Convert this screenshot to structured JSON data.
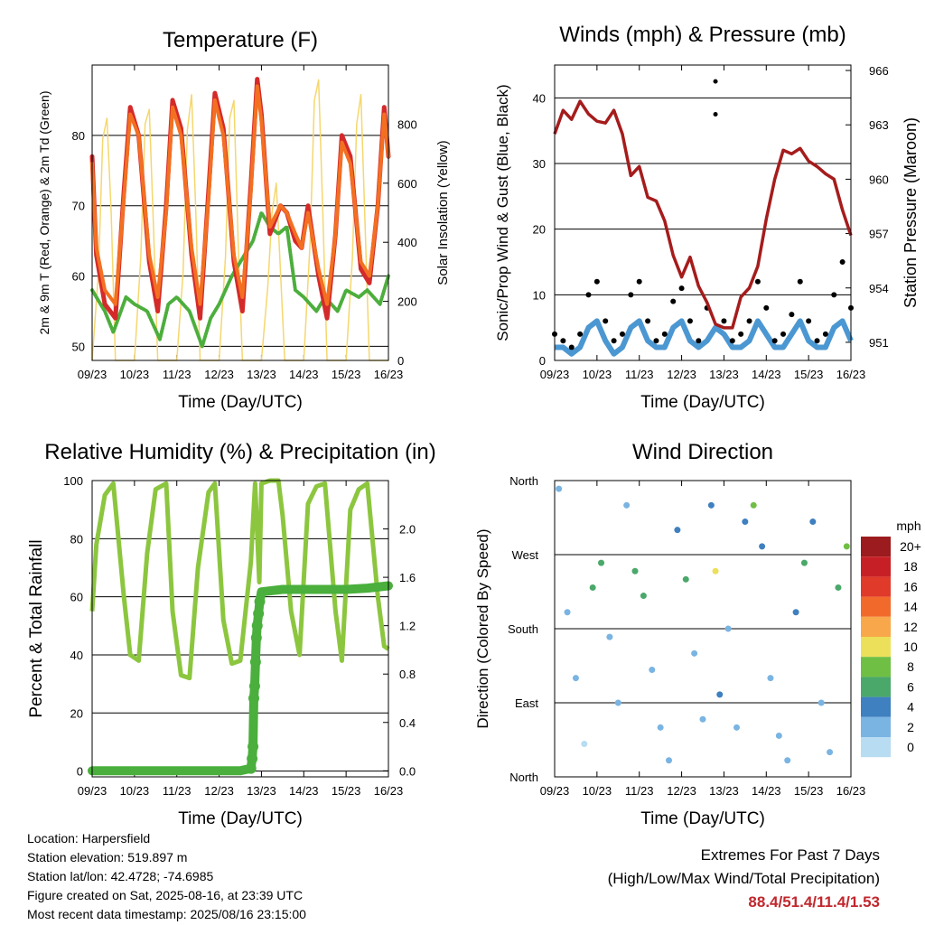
{
  "chart_data": [
    {
      "type": "line",
      "title": "Temperature (F)",
      "xlabel": "Time (Day/UTC)",
      "ylabel": "2m & 9m T (Red, Orange) & 2m Td (Green)",
      "y2label": "Solar Insolation (Yellow)",
      "x_ticks": [
        "09/23",
        "10/23",
        "11/23",
        "12/23",
        "13/23",
        "14/23",
        "15/23",
        "16/23"
      ],
      "ylim": [
        48,
        90
      ],
      "yticks": [
        50,
        60,
        70,
        80
      ],
      "y2lim": [
        0,
        1000
      ],
      "y2ticks": [
        0,
        200,
        400,
        600,
        800
      ],
      "grid": true,
      "colors": {
        "t2m": "#d42a2a",
        "t9m": "#f37021",
        "td2m": "#4cae3c",
        "solar": "#f5d76e"
      },
      "series": [
        {
          "name": "2m T",
          "x": [
            0,
            0.1,
            0.3,
            0.55,
            0.75,
            0.9,
            1.1,
            1.35,
            1.55,
            1.75,
            1.9,
            2.1,
            2.35,
            2.55,
            2.75,
            2.9,
            3.1,
            3.35,
            3.55,
            3.75,
            3.9,
            4.0,
            4.2,
            4.45,
            4.6,
            4.8,
            4.95,
            5.1,
            5.35,
            5.55,
            5.75,
            5.9,
            6.1,
            6.35,
            6.55,
            6.75,
            6.9,
            7.0
          ],
          "y": [
            77,
            63,
            56,
            54,
            72,
            84,
            80,
            62,
            55,
            70,
            85,
            81,
            63,
            54,
            72,
            86,
            81,
            62,
            55,
            73,
            88,
            83,
            66,
            70,
            69,
            65,
            64,
            70,
            60,
            54,
            66,
            80,
            77,
            61,
            59,
            70,
            84,
            77
          ]
        },
        {
          "name": "9m T",
          "x": [
            0,
            0.1,
            0.3,
            0.55,
            0.75,
            0.9,
            1.1,
            1.35,
            1.55,
            1.75,
            1.9,
            2.1,
            2.35,
            2.55,
            2.75,
            2.9,
            3.1,
            3.35,
            3.55,
            3.75,
            3.9,
            4.0,
            4.2,
            4.45,
            4.6,
            4.8,
            4.95,
            5.1,
            5.35,
            5.55,
            5.75,
            5.9,
            6.1,
            6.35,
            6.55,
            6.75,
            6.9,
            7.0
          ],
          "y": [
            76,
            64,
            58,
            56,
            71,
            83,
            80,
            63,
            57,
            69,
            84,
            80,
            64,
            56,
            71,
            85,
            80,
            63,
            57,
            72,
            87,
            82,
            67,
            70,
            69,
            66,
            64,
            69,
            61,
            56,
            66,
            79,
            76,
            62,
            60,
            70,
            83,
            77
          ]
        },
        {
          "name": "2m Td",
          "x": [
            0,
            0.3,
            0.5,
            0.8,
            1.0,
            1.3,
            1.6,
            1.8,
            2.0,
            2.3,
            2.6,
            2.8,
            3.0,
            3.3,
            3.5,
            3.8,
            4.0,
            4.2,
            4.4,
            4.6,
            4.8,
            5.0,
            5.3,
            5.5,
            5.8,
            6.0,
            6.3,
            6.5,
            6.8,
            7.0
          ],
          "y": [
            58,
            55,
            52,
            57,
            56,
            55,
            51,
            56,
            57,
            55,
            50,
            54,
            56,
            60,
            62,
            65,
            69,
            67,
            66,
            67,
            58,
            57,
            55,
            57,
            55,
            58,
            57,
            58,
            56,
            60
          ]
        },
        {
          "name": "Solar Insolation",
          "axis": "y2",
          "x": [
            0,
            0.15,
            0.25,
            0.35,
            0.45,
            0.55,
            1.0,
            1.15,
            1.25,
            1.35,
            1.45,
            1.55,
            2.0,
            2.15,
            2.25,
            2.35,
            2.45,
            2.55,
            3.0,
            3.15,
            3.25,
            3.35,
            3.45,
            3.55,
            4.0,
            4.15,
            4.25,
            4.35,
            4.45,
            4.55,
            5.0,
            5.15,
            5.25,
            5.35,
            5.45,
            5.55,
            6.0,
            6.15,
            6.25,
            6.35,
            6.45,
            6.55,
            7.0
          ],
          "y": [
            0,
            300,
            750,
            820,
            500,
            0,
            0,
            350,
            800,
            850,
            450,
            0,
            0,
            300,
            780,
            900,
            500,
            0,
            0,
            350,
            820,
            880,
            400,
            0,
            0,
            250,
            500,
            600,
            300,
            0,
            0,
            400,
            880,
            950,
            500,
            0,
            0,
            350,
            800,
            900,
            450,
            0,
            0
          ]
        }
      ]
    },
    {
      "type": "scatter",
      "title": "Winds (mph) & Pressure (mb)",
      "xlabel": "Time (Day/UTC)",
      "ylabel": "Sonic/Prop Wind & Gust (Blue, Black)",
      "y2label": "Station Pressure (Maroon)",
      "x_ticks": [
        "09/23",
        "10/23",
        "11/23",
        "12/23",
        "13/23",
        "14/23",
        "15/23",
        "16/23"
      ],
      "ylim": [
        0,
        45
      ],
      "yticks": [
        0,
        10,
        20,
        30,
        40
      ],
      "y2lim": [
        950,
        966.3
      ],
      "y2ticks": [
        951,
        954,
        957,
        960,
        963,
        966
      ],
      "grid": true,
      "colors": {
        "wind": "#4b97d2",
        "gust": "#000000",
        "pressure": "#a51c1c"
      },
      "series": [
        {
          "name": "Wind",
          "x": [
            0,
            0.2,
            0.4,
            0.6,
            0.8,
            1.0,
            1.2,
            1.4,
            1.6,
            1.8,
            2.0,
            2.2,
            2.4,
            2.6,
            2.8,
            3.0,
            3.2,
            3.4,
            3.6,
            3.8,
            4.0,
            4.2,
            4.4,
            4.6,
            4.8,
            5.0,
            5.2,
            5.4,
            5.6,
            5.8,
            6.0,
            6.2,
            6.4,
            6.6,
            6.8,
            7.0
          ],
          "y": [
            2,
            2,
            1,
            2,
            5,
            6,
            3,
            1,
            2,
            5,
            6,
            3,
            2,
            2,
            5,
            6,
            3,
            2,
            3,
            5,
            4,
            2,
            2,
            3,
            6,
            4,
            2,
            2,
            4,
            6,
            3,
            2,
            2,
            5,
            6,
            3
          ]
        },
        {
          "name": "Gust",
          "x": [
            0,
            0.2,
            0.4,
            0.6,
            0.8,
            1.0,
            1.2,
            1.4,
            1.6,
            1.8,
            2.0,
            2.2,
            2.4,
            2.6,
            2.8,
            3.0,
            3.2,
            3.4,
            3.6,
            3.8,
            4.0,
            4.2,
            4.4,
            4.6,
            4.8,
            5.0,
            5.2,
            5.4,
            5.6,
            5.8,
            6.0,
            6.2,
            6.4,
            6.6,
            6.8,
            7.0
          ],
          "y": [
            4,
            3,
            2,
            4,
            10,
            12,
            6,
            3,
            4,
            10,
            12,
            6,
            3,
            4,
            9,
            11,
            6,
            3,
            8,
            42.5,
            6,
            3,
            4,
            6,
            12,
            8,
            3,
            4,
            7,
            12,
            6,
            3,
            4,
            10,
            15,
            8
          ]
        },
        {
          "name": "Pressure",
          "axis": "y2",
          "x": [
            0,
            0.2,
            0.4,
            0.6,
            0.8,
            1.0,
            1.2,
            1.4,
            1.6,
            1.8,
            2.0,
            2.2,
            2.4,
            2.6,
            2.8,
            3.0,
            3.2,
            3.4,
            3.6,
            3.8,
            4.0,
            4.2,
            4.4,
            4.6,
            4.8,
            5.0,
            5.2,
            5.4,
            5.6,
            5.8,
            6.0,
            6.2,
            6.4,
            6.6,
            6.8,
            7.0
          ],
          "y": [
            962.5,
            963.8,
            963.3,
            964.3,
            963.6,
            963.2,
            963.1,
            963.8,
            962.5,
            960.2,
            960.7,
            959.0,
            958.8,
            957.7,
            955.8,
            954.6,
            955.7,
            954.1,
            953.2,
            952.0,
            951.8,
            951.8,
            953.5,
            954.0,
            955.2,
            957.8,
            960.0,
            961.6,
            961.4,
            961.7,
            961.0,
            960.7,
            960.3,
            960.0,
            958.3,
            956.9
          ]
        }
      ]
    },
    {
      "type": "line",
      "title": "Relative Humidity (%) & Precipitation (in)",
      "xlabel": "Time (Day/UTC)",
      "ylabel": "Percent & Total Rainfall",
      "x_ticks": [
        "09/23",
        "10/23",
        "11/23",
        "12/23",
        "13/23",
        "14/23",
        "15/23",
        "16/23"
      ],
      "ylim": [
        -2,
        100
      ],
      "yticks": [
        0,
        20,
        40,
        60,
        80,
        100
      ],
      "y2lim": [
        -0.05,
        2.4
      ],
      "y2ticks": [
        0.0,
        0.4,
        0.8,
        1.2,
        1.6,
        2.0
      ],
      "grid": true,
      "colors": {
        "rh": "#8cc63f",
        "precip": "#4aaf3c"
      },
      "series": [
        {
          "name": "Relative Humidity",
          "x": [
            0,
            0.1,
            0.3,
            0.5,
            0.75,
            0.9,
            1.1,
            1.3,
            1.5,
            1.75,
            1.9,
            2.1,
            2.3,
            2.5,
            2.75,
            2.9,
            3.1,
            3.3,
            3.5,
            3.75,
            3.85,
            3.95,
            4.0,
            4.2,
            4.4,
            4.5,
            4.7,
            4.9,
            5.1,
            5.3,
            5.5,
            5.75,
            5.9,
            6.1,
            6.3,
            6.5,
            6.75,
            6.9,
            7.0
          ],
          "y": [
            55,
            78,
            95,
            99,
            60,
            40,
            38,
            75,
            97,
            99,
            55,
            33,
            32,
            70,
            96,
            99,
            52,
            37,
            38,
            72,
            99,
            65,
            99,
            100,
            100,
            88,
            55,
            40,
            92,
            98,
            99,
            55,
            38,
            90,
            97,
            99,
            60,
            43,
            42
          ]
        },
        {
          "name": "Total Precipitation",
          "axis": "y2",
          "x": [
            0,
            0.5,
            1.0,
            1.5,
            2.0,
            2.5,
            3.0,
            3.5,
            3.75,
            3.78,
            3.8,
            3.82,
            3.84,
            3.86,
            3.88,
            3.9,
            3.93,
            3.96,
            4.0,
            4.5,
            5.0,
            5.5,
            6.0,
            6.5,
            7.0
          ],
          "y": [
            0,
            0,
            0,
            0,
            0,
            0,
            0,
            0,
            0.02,
            0.1,
            0.2,
            0.6,
            0.7,
            0.9,
            1.1,
            1.2,
            1.3,
            1.4,
            1.48,
            1.5,
            1.5,
            1.5,
            1.5,
            1.51,
            1.53
          ]
        }
      ]
    },
    {
      "type": "scatter",
      "title": "Wind Direction",
      "xlabel": "Time (Day/UTC)",
      "ylabel": "Direction (Colored By Speed)",
      "x_ticks": [
        "09/23",
        "10/23",
        "11/23",
        "12/23",
        "13/23",
        "14/23",
        "15/23",
        "16/23"
      ],
      "y_ticks": [
        "North",
        "East",
        "South",
        "West",
        "North"
      ],
      "ylim": [
        0,
        360
      ],
      "grid": true,
      "legend": {
        "title": "mph",
        "placement": "right",
        "labels": [
          "20+",
          "18",
          "16",
          "14",
          "12",
          "10",
          "8",
          "6",
          "4",
          "2",
          "0"
        ],
        "colors": [
          "#9b1b1e",
          "#c62026",
          "#e03a2b",
          "#f26a2b",
          "#f8a84a",
          "#ece05a",
          "#6fbf44",
          "#4aa86a",
          "#3e80c0",
          "#7ab4e2",
          "#b8dcf2"
        ]
      },
      "series": [
        {
          "name": "Direction",
          "x": [
            0.1,
            0.3,
            0.5,
            0.7,
            0.9,
            1.1,
            1.3,
            1.5,
            1.7,
            1.9,
            2.1,
            2.3,
            2.5,
            2.7,
            2.9,
            3.1,
            3.3,
            3.5,
            3.7,
            3.8,
            3.9,
            4.1,
            4.3,
            4.5,
            4.7,
            4.9,
            5.1,
            5.3,
            5.5,
            5.7,
            5.9,
            6.1,
            6.3,
            6.5,
            6.7,
            6.9
          ],
          "y": [
            350,
            200,
            120,
            40,
            230,
            260,
            170,
            90,
            330,
            250,
            220,
            130,
            60,
            20,
            300,
            240,
            150,
            70,
            330,
            250,
            100,
            180,
            60,
            310,
            330,
            280,
            120,
            50,
            20,
            200,
            260,
            310,
            90,
            30,
            230,
            280
          ],
          "speed": [
            2,
            1,
            1,
            0,
            5,
            5,
            2,
            1,
            2,
            6,
            5,
            2,
            1,
            1,
            4,
            5,
            2,
            2,
            3,
            9,
            4,
            2,
            2,
            4,
            7,
            4,
            2,
            1,
            1,
            3,
            6,
            4,
            1,
            1,
            5,
            7
          ]
        }
      ]
    }
  ],
  "info": {
    "location": "Location: Harpersfield",
    "elevation": "Station elevation: 519.897 m",
    "latlon": "Station lat/lon: 42.4728; -74.6985",
    "created": "Figure created on Sat, 2025-08-16, at 23:39 UTC",
    "recent": "Most recent data timestamp: 2025/08/16 23:15:00"
  },
  "extremes": {
    "heading": "Extremes For Past 7 Days",
    "subheading": "(High/Low/Max Wind/Total Precipitation)",
    "values": "88.4/51.4/11.4/1.53",
    "color": "#c0272d"
  }
}
